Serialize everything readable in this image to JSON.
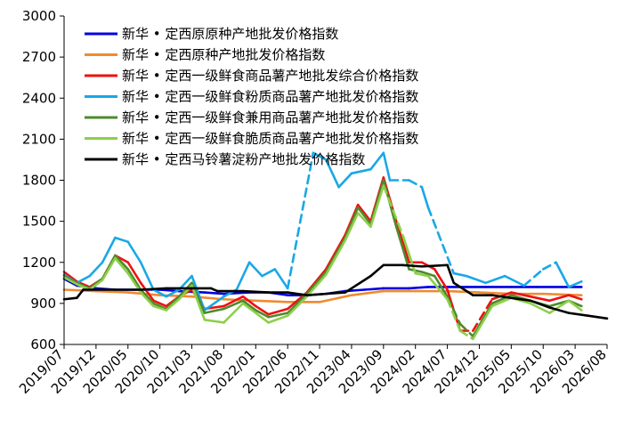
{
  "chart_data": {
    "type": "line",
    "title": "",
    "xlabel": "",
    "ylabel": "",
    "ylim": [
      600,
      3000
    ],
    "y_ticks": [
      "600",
      "900",
      "1200",
      "1500",
      "1800",
      "2100",
      "2400",
      "2700",
      "3000"
    ],
    "x_tick_labels": [
      "2019/07",
      "2019/12",
      "2020/05",
      "2020/10",
      "2021/03",
      "2021/08",
      "2022/01",
      "2022/06",
      "2022/11",
      "2023/04",
      "2023/09",
      "2024/02",
      "2024/07",
      "2024/12",
      "2025/05",
      "2025/10",
      "2026/03",
      "2026/08"
    ],
    "x_range": [
      "2019-07",
      "2026-08"
    ],
    "legend_position": "top",
    "series": [
      {
        "name": "新华 • 定西原原种产地批发价格指数",
        "color": "#0000e0",
        "points": [
          [
            "2019-07",
            1080
          ],
          [
            "2019-09",
            1030
          ],
          [
            "2019-12",
            1010
          ],
          [
            "2020-03",
            1000
          ],
          [
            "2020-06",
            1000
          ],
          [
            "2020-10",
            1000
          ],
          [
            "2021-01",
            990
          ],
          [
            "2021-05",
            980
          ],
          [
            "2021-08",
            970
          ],
          [
            "2021-12",
            980
          ],
          [
            "2022-03",
            980
          ],
          [
            "2022-06",
            960
          ],
          [
            "2022-09",
            960
          ],
          [
            "2022-12",
            970
          ],
          [
            "2023-03",
            990
          ],
          [
            "2023-06",
            1000
          ],
          [
            "2023-09",
            1010
          ],
          [
            "2024-01",
            1010
          ],
          [
            "2024-04",
            1020
          ],
          [
            "2024-07",
            1020
          ],
          [
            "2024-10",
            1020
          ],
          [
            "2025-01",
            1020
          ],
          [
            "2025-05",
            1020
          ],
          [
            "2025-09",
            1020
          ],
          [
            "2026-01",
            1020
          ],
          [
            "2026-04",
            1020
          ]
        ]
      },
      {
        "name": "新华 • 定西原种产地批发价格指数",
        "color": "#f08a30",
        "points": [
          [
            "2019-07",
            1000
          ],
          [
            "2019-12",
            990
          ],
          [
            "2020-05",
            980
          ],
          [
            "2020-10",
            960
          ],
          [
            "2021-03",
            950
          ],
          [
            "2021-08",
            930
          ],
          [
            "2022-01",
            920
          ],
          [
            "2022-06",
            910
          ],
          [
            "2022-11",
            910
          ],
          [
            "2023-04",
            960
          ],
          [
            "2023-09",
            990
          ],
          [
            "2024-02",
            990
          ],
          [
            "2024-07",
            990
          ],
          [
            "2024-12",
            980
          ],
          [
            "2025-05",
            970
          ],
          [
            "2025-10",
            970
          ],
          [
            "2026-04",
            960
          ]
        ]
      },
      {
        "name": "新华 • 定西一级鲜食商品薯产地批发综合价格指数",
        "color": "#ee1111",
        "dashed_segments": [
          [
            "2024-09",
            "2025-02"
          ]
        ],
        "points": [
          [
            "2019-07",
            1130
          ],
          [
            "2019-09",
            1060
          ],
          [
            "2019-11",
            1020
          ],
          [
            "2020-01",
            1080
          ],
          [
            "2020-03",
            1250
          ],
          [
            "2020-05",
            1200
          ],
          [
            "2020-07",
            1050
          ],
          [
            "2020-09",
            920
          ],
          [
            "2020-11",
            880
          ],
          [
            "2021-01",
            950
          ],
          [
            "2021-03",
            1000
          ],
          [
            "2021-05",
            860
          ],
          [
            "2021-08",
            880
          ],
          [
            "2021-11",
            950
          ],
          [
            "2022-01",
            880
          ],
          [
            "2022-03",
            820
          ],
          [
            "2022-06",
            860
          ],
          [
            "2022-09",
            980
          ],
          [
            "2022-12",
            1150
          ],
          [
            "2023-03",
            1400
          ],
          [
            "2023-05",
            1620
          ],
          [
            "2023-07",
            1500
          ],
          [
            "2023-09",
            1820
          ],
          [
            "2023-11",
            1500
          ],
          [
            "2024-01",
            1200
          ],
          [
            "2024-03",
            1200
          ],
          [
            "2024-05",
            1150
          ],
          [
            "2024-07",
            1000
          ],
          [
            "2024-09",
            700
          ],
          [
            "2024-11",
            700
          ],
          [
            "2025-02",
            930
          ],
          [
            "2025-05",
            980
          ],
          [
            "2025-08",
            950
          ],
          [
            "2025-11",
            920
          ],
          [
            "2026-02",
            960
          ],
          [
            "2026-04",
            930
          ]
        ]
      },
      {
        "name": "新华 • 定西一级鲜食粉质商品薯产地批发价格指数",
        "color": "#18a8e6",
        "dashed_segments": [
          [
            "2022-06",
            "2022-10"
          ],
          [
            "2023-10",
            "2024-03"
          ],
          [
            "2024-04",
            "2024-08"
          ],
          [
            "2025-07",
            "2025-12"
          ]
        ],
        "points": [
          [
            "2019-07",
            1110
          ],
          [
            "2019-09",
            1050
          ],
          [
            "2019-11",
            1100
          ],
          [
            "2020-01",
            1200
          ],
          [
            "2020-03",
            1380
          ],
          [
            "2020-05",
            1350
          ],
          [
            "2020-07",
            1200
          ],
          [
            "2020-09",
            1000
          ],
          [
            "2020-11",
            950
          ],
          [
            "2021-01",
            1000
          ],
          [
            "2021-03",
            1100
          ],
          [
            "2021-05",
            850
          ],
          [
            "2021-08",
            950
          ],
          [
            "2021-10",
            1000
          ],
          [
            "2021-12",
            1200
          ],
          [
            "2022-02",
            1100
          ],
          [
            "2022-04",
            1150
          ],
          [
            "2022-06",
            1010
          ],
          [
            "2022-10",
            2000
          ],
          [
            "2022-12",
            1950
          ],
          [
            "2023-02",
            1750
          ],
          [
            "2023-04",
            1850
          ],
          [
            "2023-07",
            1880
          ],
          [
            "2023-09",
            2000
          ],
          [
            "2023-10",
            1800
          ],
          [
            "2024-01",
            1800
          ],
          [
            "2024-03",
            1750
          ],
          [
            "2024-04",
            1600
          ],
          [
            "2024-08",
            1120
          ],
          [
            "2024-10",
            1100
          ],
          [
            "2025-01",
            1050
          ],
          [
            "2025-04",
            1100
          ],
          [
            "2025-07",
            1030
          ],
          [
            "2025-10",
            1150
          ],
          [
            "2025-12",
            1200
          ],
          [
            "2026-02",
            1020
          ],
          [
            "2026-04",
            1060
          ]
        ]
      },
      {
        "name": "新华 • 定西一级鲜食兼用商品薯产地批发价格指数",
        "color": "#4f8a2c",
        "dashed_segments": [
          [
            "2024-07",
            "2024-11"
          ]
        ],
        "points": [
          [
            "2019-07",
            1100
          ],
          [
            "2019-09",
            1050
          ],
          [
            "2019-11",
            1010
          ],
          [
            "2020-01",
            1080
          ],
          [
            "2020-03",
            1250
          ],
          [
            "2020-05",
            1150
          ],
          [
            "2020-07",
            1000
          ],
          [
            "2020-09",
            900
          ],
          [
            "2020-11",
            860
          ],
          [
            "2021-01",
            950
          ],
          [
            "2021-03",
            1050
          ],
          [
            "2021-05",
            830
          ],
          [
            "2021-08",
            860
          ],
          [
            "2021-11",
            920
          ],
          [
            "2022-01",
            850
          ],
          [
            "2022-03",
            800
          ],
          [
            "2022-06",
            830
          ],
          [
            "2022-09",
            970
          ],
          [
            "2022-12",
            1130
          ],
          [
            "2023-03",
            1380
          ],
          [
            "2023-05",
            1600
          ],
          [
            "2023-07",
            1480
          ],
          [
            "2023-09",
            1800
          ],
          [
            "2023-11",
            1460
          ],
          [
            "2024-01",
            1150
          ],
          [
            "2024-03",
            1130
          ],
          [
            "2024-05",
            1100
          ],
          [
            "2024-07",
            950
          ],
          [
            "2024-09",
            750
          ],
          [
            "2024-11",
            660
          ],
          [
            "2025-02",
            900
          ],
          [
            "2025-05",
            960
          ],
          [
            "2025-08",
            920
          ],
          [
            "2025-11",
            880
          ],
          [
            "2026-02",
            920
          ],
          [
            "2026-04",
            880
          ]
        ]
      },
      {
        "name": "新华 • 定西一级鲜食脆质商品薯产地批发价格指数",
        "color": "#8dcf4a",
        "dashed_segments": [
          [
            "2023-09",
            "2023-12"
          ],
          [
            "2024-07",
            "2024-11"
          ]
        ],
        "points": [
          [
            "2019-07",
            1090
          ],
          [
            "2019-09",
            1040
          ],
          [
            "2019-11",
            1000
          ],
          [
            "2020-01",
            1070
          ],
          [
            "2020-03",
            1230
          ],
          [
            "2020-05",
            1120
          ],
          [
            "2020-07",
            980
          ],
          [
            "2020-09",
            880
          ],
          [
            "2020-11",
            850
          ],
          [
            "2021-01",
            930
          ],
          [
            "2021-03",
            1030
          ],
          [
            "2021-05",
            780
          ],
          [
            "2021-08",
            760
          ],
          [
            "2021-11",
            900
          ],
          [
            "2022-01",
            830
          ],
          [
            "2022-03",
            760
          ],
          [
            "2022-06",
            810
          ],
          [
            "2022-09",
            950
          ],
          [
            "2022-12",
            1110
          ],
          [
            "2023-03",
            1360
          ],
          [
            "2023-05",
            1560
          ],
          [
            "2023-07",
            1460
          ],
          [
            "2023-09",
            1760
          ],
          [
            "2023-12",
            1400
          ],
          [
            "2024-02",
            1120
          ],
          [
            "2024-04",
            1100
          ],
          [
            "2024-07",
            930
          ],
          [
            "2024-09",
            700
          ],
          [
            "2024-11",
            640
          ],
          [
            "2025-02",
            880
          ],
          [
            "2025-05",
            940
          ],
          [
            "2025-08",
            900
          ],
          [
            "2025-11",
            830
          ],
          [
            "2026-02",
            920
          ],
          [
            "2026-04",
            850
          ]
        ]
      },
      {
        "name": "新华 • 定西马铃薯淀粉产地批发价格指数",
        "color": "#000000",
        "points": [
          [
            "2019-07",
            930
          ],
          [
            "2019-09",
            940
          ],
          [
            "2019-10",
            1000
          ],
          [
            "2020-03",
            1000
          ],
          [
            "2020-07",
            1000
          ],
          [
            "2020-11",
            1010
          ],
          [
            "2021-03",
            1010
          ],
          [
            "2021-06",
            1010
          ],
          [
            "2021-07",
            990
          ],
          [
            "2021-11",
            990
          ],
          [
            "2022-03",
            980
          ],
          [
            "2022-06",
            980
          ],
          [
            "2022-09",
            960
          ],
          [
            "2022-12",
            970
          ],
          [
            "2023-03",
            980
          ],
          [
            "2023-07",
            1100
          ],
          [
            "2023-09",
            1180
          ],
          [
            "2023-12",
            1180
          ],
          [
            "2024-03",
            1170
          ],
          [
            "2024-07",
            1180
          ],
          [
            "2024-08",
            1050
          ],
          [
            "2024-11",
            960
          ],
          [
            "2025-02",
            960
          ],
          [
            "2025-05",
            940
          ],
          [
            "2025-08",
            920
          ],
          [
            "2025-11",
            870
          ],
          [
            "2026-02",
            830
          ],
          [
            "2026-05",
            810
          ],
          [
            "2026-08",
            790
          ]
        ]
      }
    ]
  }
}
